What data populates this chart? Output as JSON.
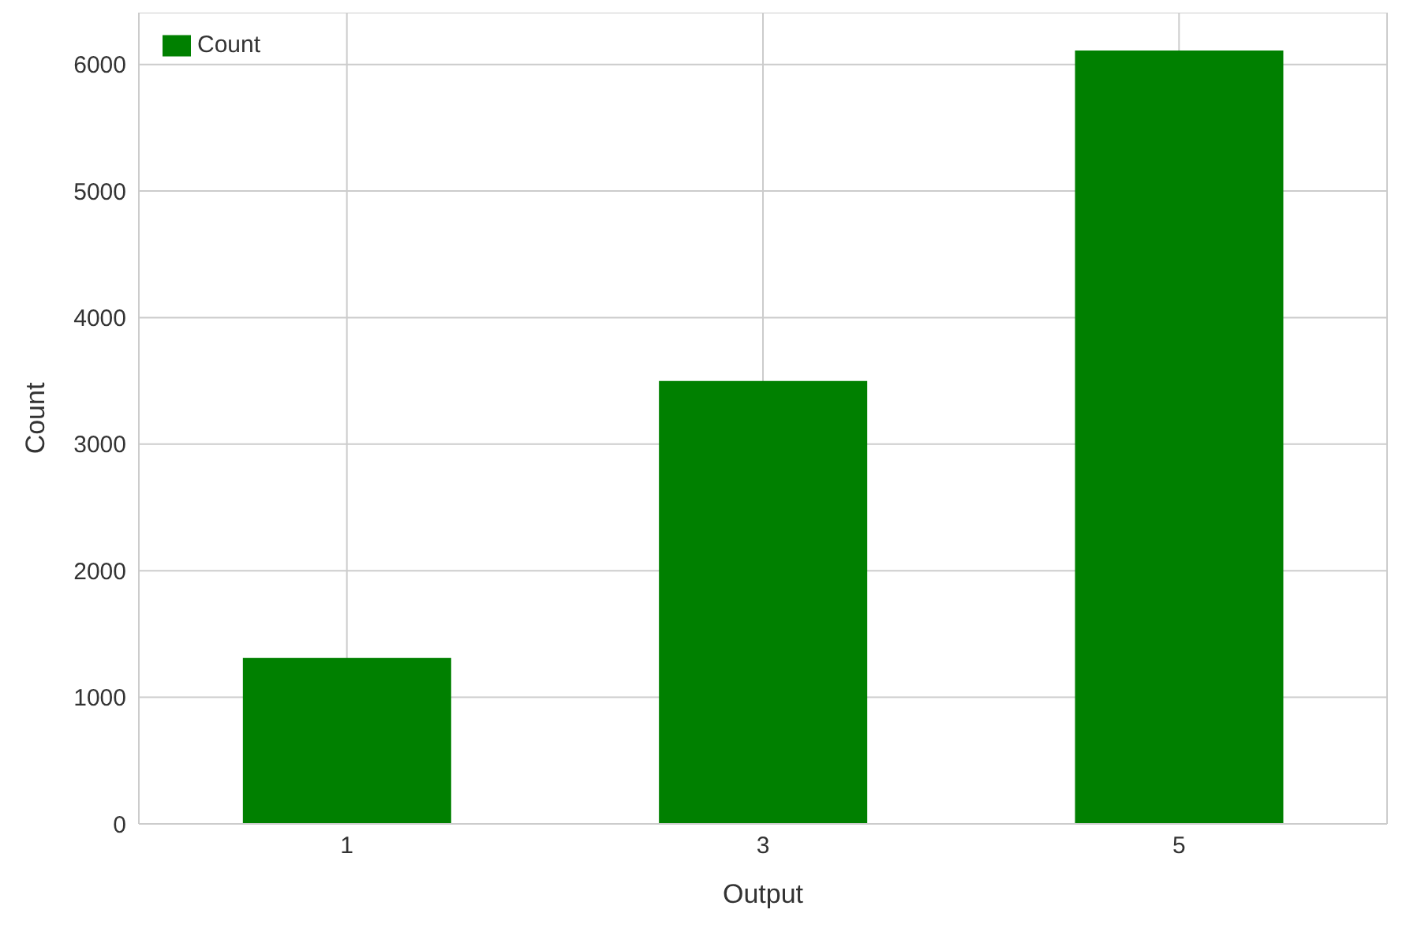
{
  "chart_data": {
    "type": "bar",
    "categories": [
      "1",
      "3",
      "5"
    ],
    "xlabel": "Output",
    "ylabel": "Count",
    "series": [
      {
        "name": "Count",
        "color": "#008000",
        "values": [
          1310,
          3500,
          6110
        ]
      }
    ],
    "ylim": [
      0,
      6410
    ],
    "yticks": [
      0,
      1000,
      2000,
      3000,
      4000,
      5000,
      6000
    ],
    "grid": true,
    "legend": "top left"
  }
}
